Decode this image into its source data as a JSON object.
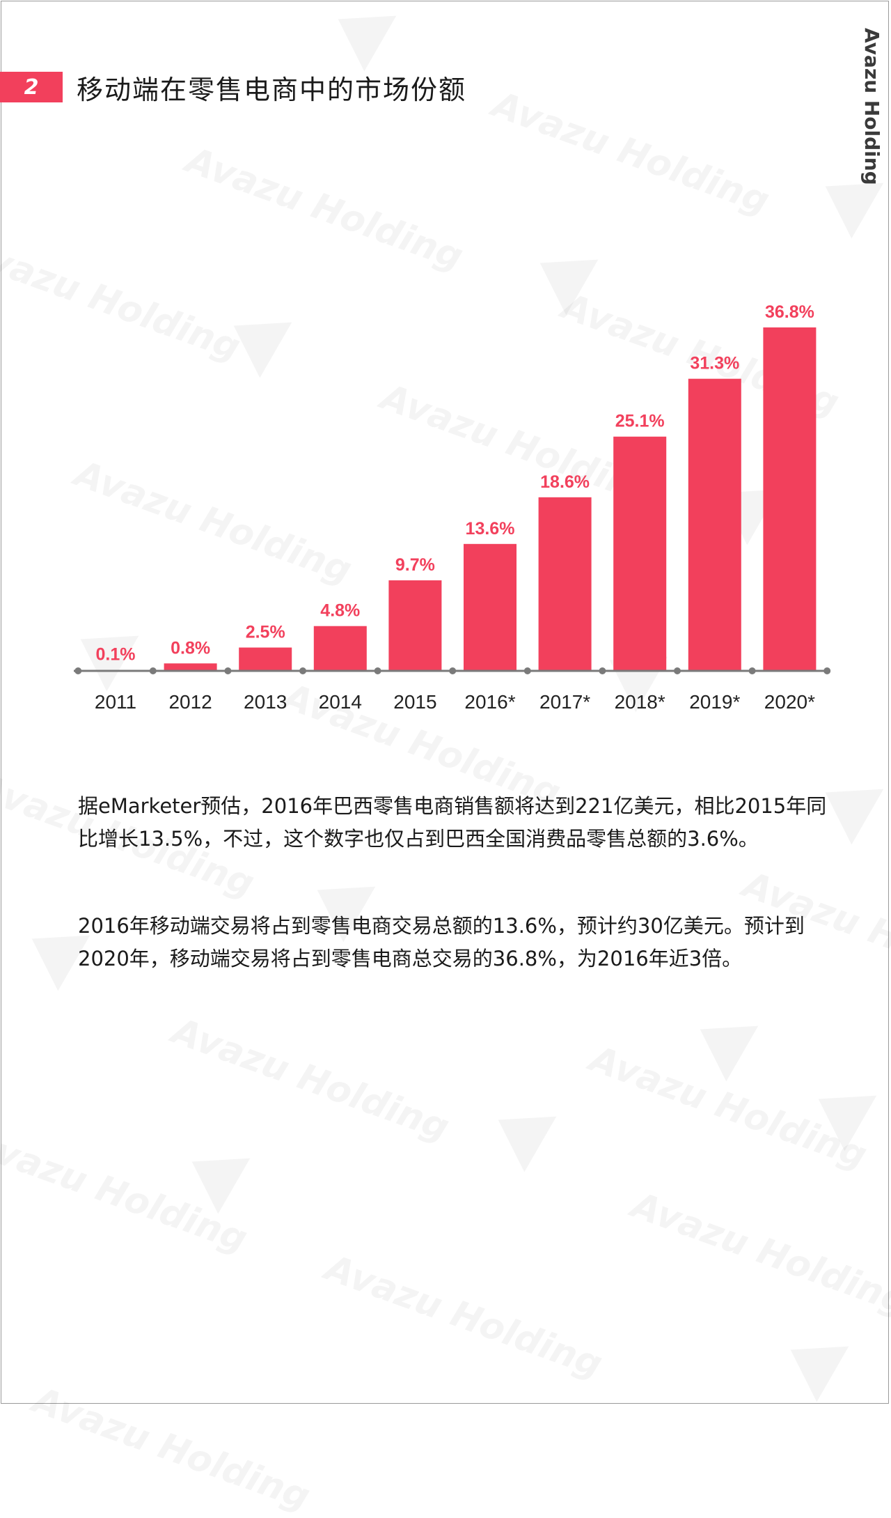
{
  "section": {
    "number": "2",
    "title": "移动端在零售电商中的市场份额"
  },
  "brand": "Avazu Holding",
  "watermark_text": "Avazu Holding",
  "colors": {
    "accent": "#f2405c",
    "axis": "#7a7a7a",
    "text": "#1a1a1a"
  },
  "chart_data": {
    "type": "bar",
    "categories": [
      "2011",
      "2012",
      "2013",
      "2014",
      "2015",
      "2016*",
      "2017*",
      "2018*",
      "2019*",
      "2020*"
    ],
    "values": [
      0.1,
      0.8,
      2.5,
      4.8,
      9.7,
      13.6,
      18.6,
      25.1,
      31.3,
      36.8
    ],
    "data_labels": [
      "0.1%",
      "0.8%",
      "2.5%",
      "4.8%",
      "9.7%",
      "13.6%",
      "18.6%",
      "25.1%",
      "31.3%",
      "36.8%"
    ],
    "ylim": [
      0,
      36.8
    ],
    "grid": false,
    "legend": "none"
  },
  "paragraphs": [
    "据eMarketer预估，2016年巴西零售电商销售额将达到221亿美元，相比2015年同比增长13.5%，不过，这个数字也仅占到巴西全国消费品零售总额的3.6%。",
    "2016年移动端交易将占到零售电商交易总额的13.6%，预计约30亿美元。预计到2020年，移动端交易将占到零售电商总交易的36.8%，为2016年近3倍。"
  ]
}
